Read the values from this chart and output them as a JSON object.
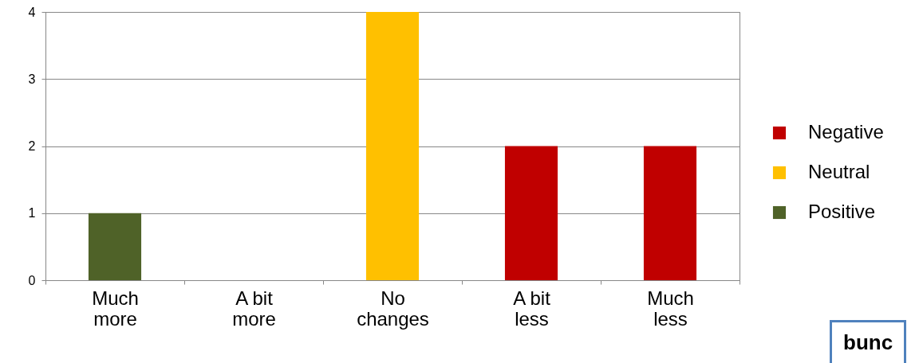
{
  "chart_data": {
    "type": "bar",
    "categories": [
      "Much more",
      "A bit more",
      "No changes",
      "A bit less",
      "Much less"
    ],
    "series": [
      {
        "name": "Negative",
        "color": "#c00000",
        "values": [
          null,
          null,
          null,
          2,
          2
        ]
      },
      {
        "name": "Neutral",
        "color": "#ffc000",
        "values": [
          null,
          null,
          4,
          null,
          null
        ]
      },
      {
        "name": "Positive",
        "color": "#4f6228",
        "values": [
          1,
          null,
          null,
          null,
          null
        ]
      }
    ],
    "ylim": [
      0,
      4
    ],
    "yticks": [
      0,
      1,
      2,
      3,
      4
    ],
    "grid": "y",
    "legend": "right",
    "annotations": [
      "bunc"
    ]
  }
}
